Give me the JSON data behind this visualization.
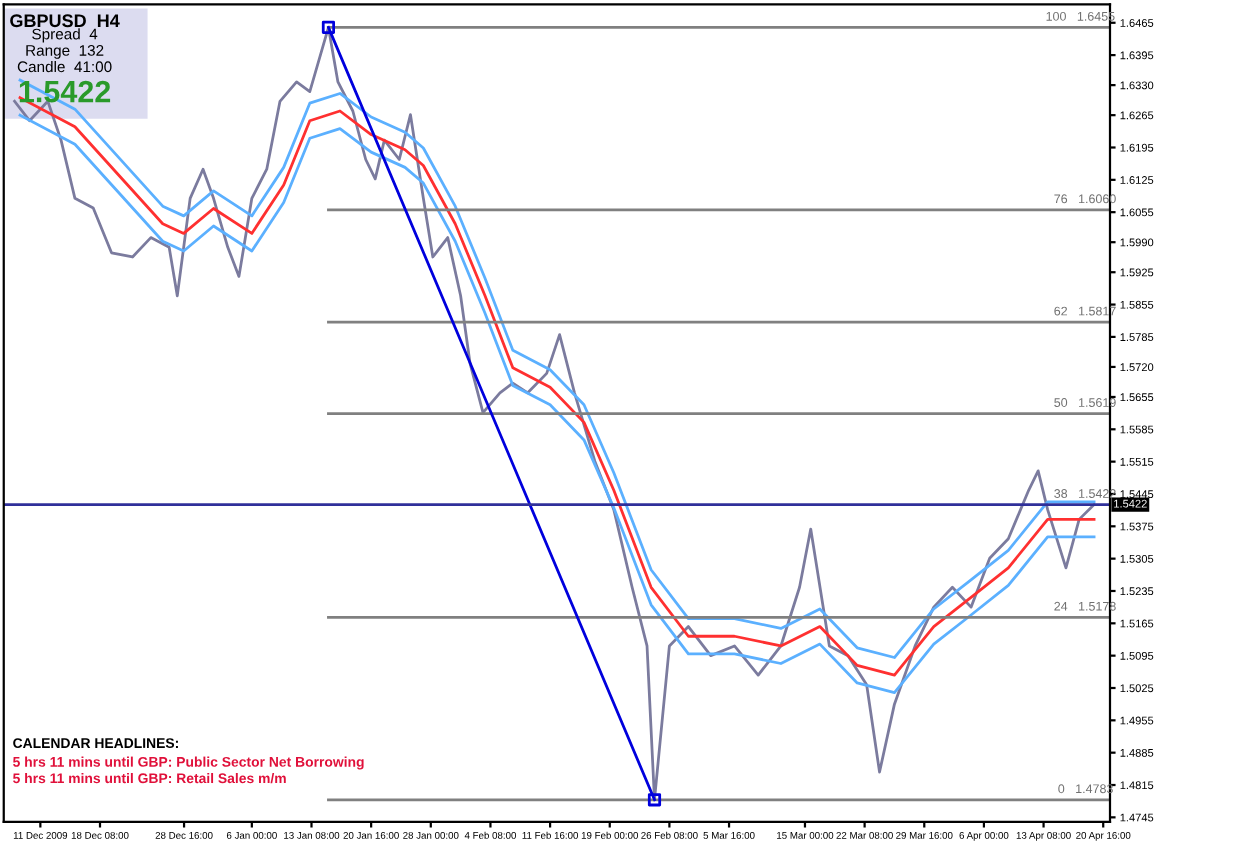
{
  "chart_data": {
    "type": "line",
    "xlim": [
      "2009-12-06T12:00",
      "2010-04-21T12:00"
    ],
    "ylim": [
      1.4735,
      1.6505
    ],
    "xticks": [
      {
        "value": "2009-12-11T00:00",
        "label": "11 Dec 2009"
      },
      {
        "value": "2009-12-18T08:00",
        "label": "18 Dec 08:00"
      },
      {
        "value": "2009-12-28T16:00",
        "label": "28 Dec 16:00"
      },
      {
        "value": "2010-01-06T00:00",
        "label": "6 Jan 00:00"
      },
      {
        "value": "2010-01-13T08:00",
        "label": "13 Jan 08:00"
      },
      {
        "value": "2010-01-20T16:00",
        "label": "20 Jan 16:00"
      },
      {
        "value": "2010-01-28T00:00",
        "label": "28 Jan 00:00"
      },
      {
        "value": "2010-02-04T08:00",
        "label": "4 Feb 08:00"
      },
      {
        "value": "2010-02-11T16:00",
        "label": "11 Feb 16:00"
      },
      {
        "value": "2010-02-19T00:00",
        "label": "19 Feb 00:00"
      },
      {
        "value": "2010-02-26T08:00",
        "label": "26 Feb 08:00"
      },
      {
        "value": "2010-03-05T16:00",
        "label": "5 Mar 16:00"
      },
      {
        "value": "2010-03-15T00:00",
        "label": "15 Mar 00:00"
      },
      {
        "value": "2010-03-22T08:00",
        "label": "22 Mar 08:00"
      },
      {
        "value": "2010-03-29T16:00",
        "label": "29 Mar 16:00"
      },
      {
        "value": "2010-04-06T00:00",
        "label": "6 Apr 00:00"
      },
      {
        "value": "2010-04-13T08:00",
        "label": "13 Apr 08:00"
      },
      {
        "value": "2010-04-20T16:00",
        "label": "20 Apr 16:00"
      }
    ],
    "yticks": [
      1.6465,
      1.6395,
      {
        "value": 1.633,
        "label": "1.6330"
      },
      1.6265,
      1.6195,
      1.6125,
      1.6055,
      {
        "value": 1.599,
        "label": "1.5990"
      },
      1.5925,
      1.5855,
      1.5785,
      {
        "value": 1.572,
        "label": "1.5720"
      },
      1.5655,
      1.5585,
      1.5515,
      1.5445,
      1.5375,
      1.5305,
      1.5235,
      1.5165,
      1.5095,
      1.5025,
      1.4955,
      1.4885,
      1.4815,
      1.4745
    ],
    "grid": false,
    "series": [
      {
        "color": "#7b7b9e",
        "x": [
          "2009-12-07T20:00",
          "2009-12-09T16:00",
          "2009-12-11T22:00",
          "2009-12-13T13:00",
          "2009-12-15T06:00",
          "2009-12-17T12:00",
          "2009-12-19T18:00",
          "2009-12-22T08:00",
          "2009-12-24T14:00",
          "2009-12-26T20:00",
          "2009-12-27T20:00",
          "2009-12-29T10:00",
          "2009-12-31T00:00",
          "2010-01-01T07:00",
          "2010-01-03T01:00",
          "2010-01-04T10:00",
          "2010-01-06T00:00",
          "2010-01-07T20:00",
          "2010-01-09T11:00",
          "2010-01-11T12:00",
          "2010-01-13T03:00",
          "2010-01-15T10:00",
          "2010-01-16T14:00",
          "2010-01-18T10:00",
          "2010-01-20T00:00",
          "2010-01-21T04:00",
          "2010-01-22T07:00",
          "2010-01-24T03:00",
          "2010-01-25T12:00",
          "2010-01-27T02:00",
          "2010-01-28T06:00",
          "2010-01-30T02:00",
          "2010-01-31T16:00",
          "2010-02-01T20:00",
          "2010-02-03T10:00",
          "2010-02-05T12:00",
          "2010-02-07T02:00",
          "2010-02-08T22:00",
          "2010-02-11T06:00",
          "2010-02-12T20:00",
          "2010-02-14T16:00",
          "2010-02-17T04:00",
          "2010-02-19T12:00",
          "2010-02-21T18:00",
          "2010-02-23T14:00",
          "2010-02-24T12:00",
          "2010-02-26T08:00",
          "2010-02-28T16:00",
          "2010-03-03T10:00",
          "2010-03-06T08:00",
          "2010-03-09T06:00",
          "2010-03-12T01:00",
          "2010-03-14T08:00",
          "2010-03-15T17:00",
          "2010-03-18T00:00",
          "2010-03-20T07:00",
          "2010-03-22T14:00",
          "2010-03-24T04:00",
          "2010-03-26T00:00",
          "2010-03-28T13:00",
          "2010-03-30T20:00",
          "2010-04-02T03:00",
          "2010-04-04T10:00",
          "2010-04-06T17:00",
          "2010-04-09T00:00",
          "2010-04-11T12:00",
          "2010-04-12T16:00",
          "2010-04-13T20:00",
          "2010-04-16T02:00",
          "2010-04-17T17:00",
          "2010-04-19T13:00"
        ],
        "values": [
          1.6295,
          1.6253,
          1.6295,
          1.6211,
          1.6085,
          1.6064,
          1.5967,
          1.5958,
          1.6,
          1.5979,
          1.5874,
          1.6085,
          1.6148,
          1.6085,
          1.5979,
          1.5916,
          1.6085,
          1.6148,
          1.6295,
          1.6337,
          1.6316,
          1.6455,
          1.6337,
          1.6274,
          1.6169,
          1.6127,
          1.6211,
          1.6169,
          1.6266,
          1.6085,
          1.5958,
          1.6,
          1.5874,
          1.5727,
          1.5621,
          1.5664,
          1.5685,
          1.5664,
          1.5706,
          1.579,
          1.5664,
          1.5516,
          1.5411,
          1.5243,
          1.5116,
          1.4783,
          1.5116,
          1.5158,
          1.5095,
          1.5116,
          1.5053,
          1.5116,
          1.5243,
          1.5369,
          1.5116,
          1.5095,
          1.5032,
          1.4843,
          1.499,
          1.5116,
          1.52,
          1.5243,
          1.52,
          1.5306,
          1.5348,
          1.5453,
          1.5495,
          1.5411,
          1.5285,
          1.539,
          1.5422
        ]
      },
      {
        "color": "#ff3030",
        "x": [
          "2009-12-08T12:00",
          "2009-12-15T06:00",
          "2009-12-26T01:00",
          "2009-12-28T15:00",
          "2010-01-01T07:00",
          "2010-01-06T00:00",
          "2010-01-09T22:00",
          "2010-01-13T03:00",
          "2010-01-16T20:00",
          "2010-01-20T16:00",
          "2010-01-24T20:00",
          "2010-01-27T02:00",
          "2010-01-31T00:00",
          "2010-02-03T16:00",
          "2010-02-07T02:00",
          "2010-02-11T16:00",
          "2010-02-15T20:00",
          "2010-02-19T12:00",
          "2010-02-24T02:00",
          "2010-02-28T16:00",
          "2010-03-06T08:00",
          "2010-03-12T01:00",
          "2010-03-16T20:00",
          "2010-03-21T10:00",
          "2010-03-26T00:00",
          "2010-03-30T20:00",
          "2010-04-04T10:00",
          "2010-04-09T00:00",
          "2010-04-13T20:00",
          "2010-04-19T13:00"
        ],
        "values": [
          1.6303,
          1.624,
          1.603,
          1.6009,
          1.6063,
          1.6009,
          1.6114,
          1.6253,
          1.6274,
          1.6223,
          1.619,
          1.6156,
          1.603,
          1.5874,
          1.5718,
          1.5676,
          1.56,
          1.5453,
          1.5243,
          1.5137,
          1.5137,
          1.5116,
          1.5158,
          1.5074,
          1.5053,
          1.5158,
          1.5221,
          1.5285,
          1.539,
          1.539
        ]
      },
      {
        "color": "#5bb0ff",
        "x": [
          "2009-12-08T12:00",
          "2009-12-15T06:00",
          "2009-12-26T01:00",
          "2009-12-28T15:00",
          "2010-01-01T07:00",
          "2010-01-06T00:00",
          "2010-01-09T22:00",
          "2010-01-13T03:00",
          "2010-01-16T20:00",
          "2010-01-20T16:00",
          "2010-01-24T20:00",
          "2010-01-27T02:00",
          "2010-01-31T00:00",
          "2010-02-03T16:00",
          "2010-02-07T02:00",
          "2010-02-11T16:00",
          "2010-02-15T20:00",
          "2010-02-19T12:00",
          "2010-02-24T02:00",
          "2010-02-28T16:00",
          "2010-03-06T08:00",
          "2010-03-12T01:00",
          "2010-03-16T20:00",
          "2010-03-21T10:00",
          "2010-03-26T00:00",
          "2010-03-30T20:00",
          "2010-04-04T10:00",
          "2010-04-09T00:00",
          "2010-04-13T20:00",
          "2010-04-19T13:00"
        ],
        "values": [
          1.6341,
          1.6278,
          1.6068,
          1.6047,
          1.6101,
          1.6047,
          1.6152,
          1.6291,
          1.6312,
          1.6261,
          1.6228,
          1.6194,
          1.6068,
          1.5912,
          1.5756,
          1.5714,
          1.5638,
          1.5491,
          1.5281,
          1.5175,
          1.5175,
          1.5154,
          1.5196,
          1.5112,
          1.5091,
          1.5196,
          1.5259,
          1.5323,
          1.5428,
          1.5428
        ]
      },
      {
        "color": "#5bb0ff",
        "x": [
          "2009-12-08T12:00",
          "2009-12-15T06:00",
          "2009-12-26T01:00",
          "2009-12-28T15:00",
          "2010-01-01T07:00",
          "2010-01-06T00:00",
          "2010-01-09T22:00",
          "2010-01-13T03:00",
          "2010-01-16T20:00",
          "2010-01-20T16:00",
          "2010-01-24T20:00",
          "2010-01-27T02:00",
          "2010-01-31T00:00",
          "2010-02-03T16:00",
          "2010-02-07T02:00",
          "2010-02-11T16:00",
          "2010-02-15T20:00",
          "2010-02-19T12:00",
          "2010-02-24T02:00",
          "2010-02-28T16:00",
          "2010-03-06T08:00",
          "2010-03-12T01:00",
          "2010-03-16T20:00",
          "2010-03-21T10:00",
          "2010-03-26T00:00",
          "2010-03-30T20:00",
          "2010-04-04T10:00",
          "2010-04-09T00:00",
          "2010-04-13T20:00",
          "2010-04-19T13:00"
        ],
        "values": [
          1.6265,
          1.6202,
          1.5992,
          1.5971,
          1.6025,
          1.5971,
          1.6076,
          1.6215,
          1.6236,
          1.6185,
          1.6152,
          1.6118,
          1.5992,
          1.5836,
          1.568,
          1.5638,
          1.5562,
          1.5415,
          1.5205,
          1.5099,
          1.5099,
          1.5078,
          1.512,
          1.5036,
          1.5015,
          1.512,
          1.5183,
          1.5247,
          1.5352,
          1.5352
        ]
      },
      {
        "color": "#808080",
        "x": [
          "2010-01-15T10:00",
          "2010-04-21T12:00"
        ],
        "values": [
          1.6455,
          1.6455
        ]
      },
      {
        "color": "#808080",
        "x": [
          "2010-01-15T10:00",
          "2010-04-21T12:00"
        ],
        "values": [
          1.606,
          1.606
        ]
      },
      {
        "color": "#808080",
        "x": [
          "2010-01-15T10:00",
          "2010-04-21T12:00"
        ],
        "values": [
          1.5817,
          1.5817
        ]
      },
      {
        "color": "#808080",
        "x": [
          "2010-01-15T10:00",
          "2010-04-21T12:00"
        ],
        "values": [
          1.5619,
          1.5619
        ]
      },
      {
        "color": "#808080",
        "x": [
          "2010-01-15T10:00",
          "2010-04-21T12:00"
        ],
        "values": [
          1.5178,
          1.5178
        ]
      },
      {
        "color": "#808080",
        "x": [
          "2010-01-15T10:00",
          "2010-04-21T12:00"
        ],
        "values": [
          1.4783,
          1.4783
        ]
      },
      {
        "color": "#0000dd",
        "marker": "square",
        "x": [
          "2010-01-15T10:00",
          "2010-02-24T12:00"
        ],
        "values": [
          1.6455,
          1.4783
        ]
      }
    ],
    "ref_lines": [
      {
        "axis": "y",
        "value": 1.5422,
        "label": "1.5422",
        "color": "#30309a"
      }
    ],
    "annotations": [
      "GBPUSD  H4",
      "Spread  4",
      "Range  132",
      "Candle  41:00",
      "1.5422",
      "CALENDAR HEADLINES:",
      "5 hrs 11 mins until GBP: Public Sector Net Borrowing",
      "5 hrs 11 mins until GBP: Retail Sales m/m",
      {
        "text": "100   1.6455",
        "x": "2010-04-13T14:00",
        "y": 1.6455
      },
      {
        "text": "76   1.6060",
        "x": "2010-04-14T14:00",
        "y": 1.606
      },
      {
        "text": "62   1.5817",
        "x": "2010-04-14T14:00",
        "y": 1.5817
      },
      {
        "text": "50   1.5619",
        "x": "2010-04-14T14:00",
        "y": 1.5619
      },
      {
        "text": "38   1.5422",
        "x": "2010-04-14T14:00",
        "y": 1.5422
      },
      {
        "text": "24   1.5178",
        "x": "2010-04-14T14:00",
        "y": 1.5178
      },
      {
        "text": "0   1.4783",
        "x": "2010-04-15T02:00",
        "y": 1.4783
      }
    ]
  }
}
